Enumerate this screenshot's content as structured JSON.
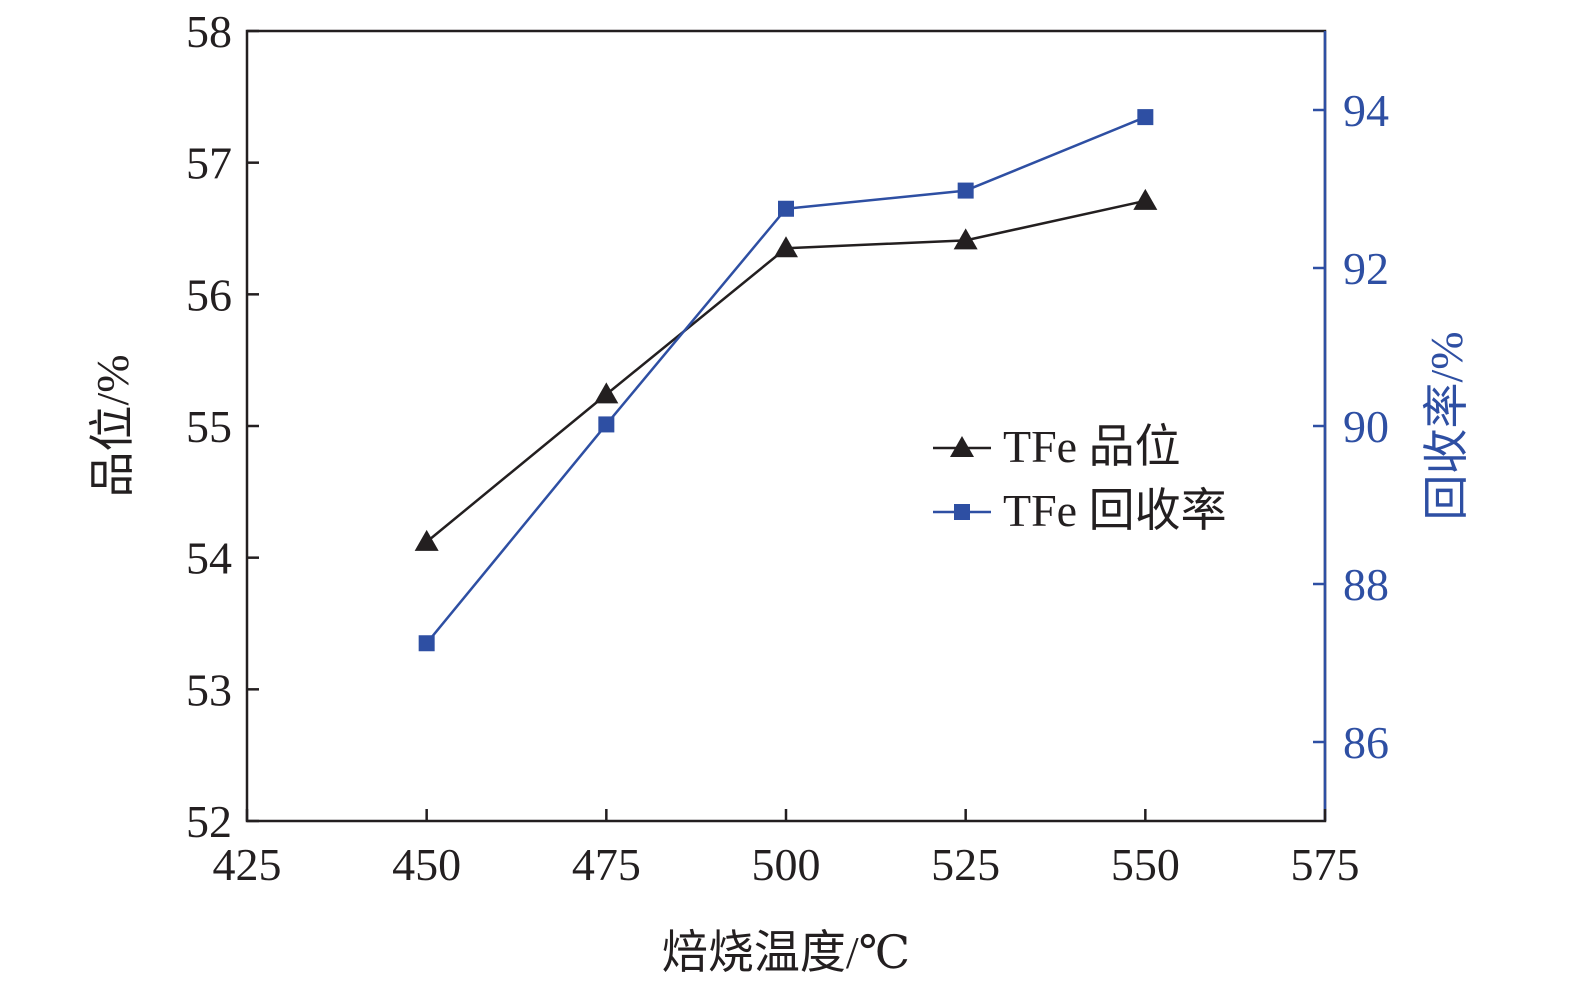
{
  "chart_data": {
    "type": "line",
    "title": "",
    "xlabel": "焙烧温度/℃",
    "ylabel": "品位/%",
    "y2label": "回收率/%",
    "xlim": [
      425,
      575
    ],
    "ylim": [
      52,
      58
    ],
    "y2lim": [
      85,
      95
    ],
    "xticks": [
      "425",
      "450",
      "475",
      "500",
      "525",
      "550",
      "575"
    ],
    "yticks": [
      "52",
      "53",
      "54",
      "55",
      "56",
      "57",
      "58"
    ],
    "y2ticks": [
      "86",
      "88",
      "90",
      "92",
      "94"
    ],
    "x": [
      450,
      475,
      500,
      525,
      550
    ],
    "series": [
      {
        "name": "TFe 品位",
        "axis": "left",
        "marker": "triangle",
        "color": "#231f20",
        "values": [
          54.12,
          55.24,
          56.35,
          56.41,
          56.71
        ]
      },
      {
        "name": "TFe 回收率",
        "axis": "right",
        "marker": "square",
        "color": "#2e4fa3",
        "values": [
          87.25,
          90.02,
          92.75,
          92.98,
          93.91
        ]
      }
    ],
    "legend_position": "center-right",
    "grid": false
  },
  "colors": {
    "left_axis": "#231f20",
    "right_axis": "#2e4fa3"
  }
}
